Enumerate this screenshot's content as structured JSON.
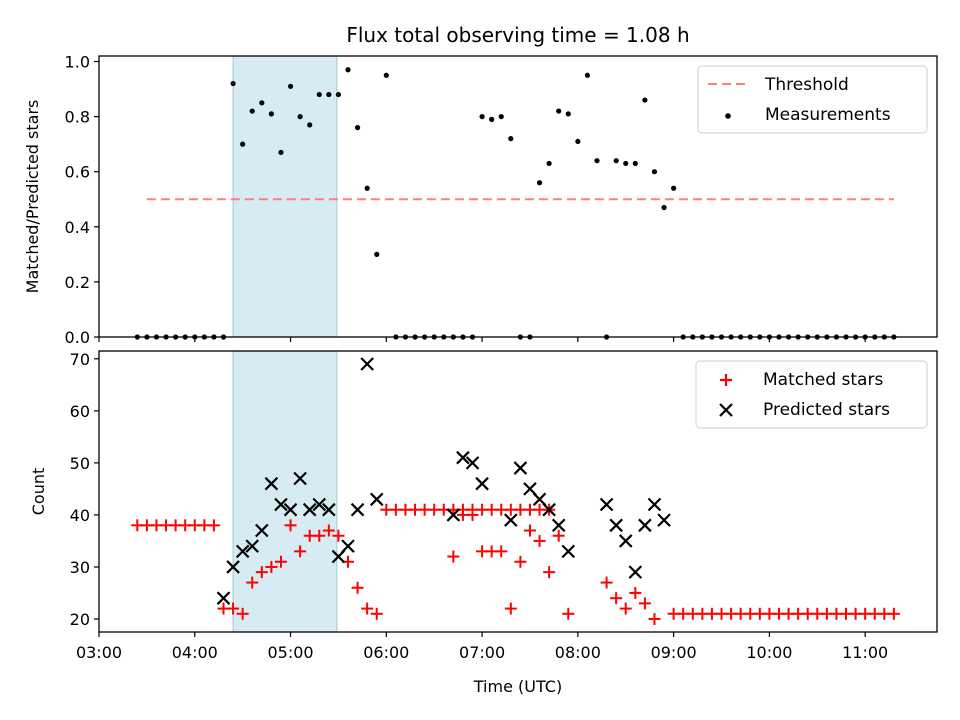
{
  "chart_data": [
    {
      "type": "scatter",
      "title": "Flux total observing time = 1.08 h",
      "xlabel": "",
      "ylabel": "Matched/Predicted stars",
      "xlim": [
        "03:00",
        "11:45"
      ],
      "ylim": [
        0,
        1.02
      ],
      "yticks": [
        "0.0",
        "0.2",
        "0.4",
        "0.6",
        "0.8",
        "1.0"
      ],
      "grid": false,
      "legend_position": "top-right",
      "highlight_span": [
        "04:24",
        "05:29"
      ],
      "series": [
        {
          "name": "Threshold",
          "kind": "dashed-line",
          "color": "#ff7f7f",
          "x": [
            "03:30",
            "11:18"
          ],
          "y": [
            0.5,
            0.5
          ]
        },
        {
          "name": "Measurements",
          "kind": "points",
          "color": "#000000",
          "x": [
            "03:24",
            "03:30",
            "03:36",
            "03:42",
            "03:48",
            "03:54",
            "04:00",
            "04:06",
            "04:12",
            "04:18",
            "04:24",
            "04:30",
            "04:36",
            "04:42",
            "04:48",
            "04:54",
            "05:00",
            "05:06",
            "05:12",
            "05:18",
            "05:24",
            "05:30",
            "05:36",
            "05:42",
            "05:48",
            "05:54",
            "06:00",
            "06:06",
            "06:12",
            "06:18",
            "06:24",
            "06:30",
            "06:36",
            "06:42",
            "06:48",
            "06:54",
            "07:00",
            "07:06",
            "07:12",
            "07:18",
            "07:24",
            "07:30",
            "07:36",
            "07:42",
            "07:48",
            "07:54",
            "08:00",
            "08:06",
            "08:12",
            "08:18",
            "08:24",
            "08:30",
            "08:36",
            "08:42",
            "08:48",
            "08:54",
            "09:00",
            "09:06",
            "09:12",
            "09:18",
            "09:24",
            "09:30",
            "09:36",
            "09:42",
            "09:48",
            "09:54",
            "10:00",
            "10:06",
            "10:12",
            "10:18",
            "10:24",
            "10:30",
            "10:36",
            "10:42",
            "10:48",
            "10:54",
            "11:00",
            "11:06",
            "11:12",
            "11:18"
          ],
          "y": [
            0,
            0,
            0,
            0,
            0,
            0,
            0,
            0,
            0,
            0,
            0.92,
            0.7,
            0.82,
            0.85,
            0.81,
            0.67,
            0.91,
            0.8,
            0.77,
            0.88,
            0.88,
            0.88,
            0.97,
            0.76,
            0.54,
            0.3,
            0.95,
            0,
            0,
            0,
            0,
            0,
            0,
            0,
            0,
            0,
            0.8,
            0.79,
            0.8,
            0.72,
            0,
            0,
            0.56,
            0.63,
            0.82,
            0.81,
            0.71,
            0.95,
            0.64,
            0,
            0.64,
            0.63,
            0.63,
            0.86,
            0.6,
            0.47,
            0.54,
            0,
            0,
            0,
            0,
            0,
            0,
            0,
            0,
            0,
            0,
            0,
            0,
            0,
            0,
            0,
            0,
            0,
            0,
            0,
            0,
            0,
            0,
            0
          ]
        }
      ]
    },
    {
      "type": "scatter",
      "title": "",
      "xlabel": "Time (UTC)",
      "ylabel": "Count",
      "xlim": [
        "03:00",
        "11:45"
      ],
      "ylim": [
        17.5,
        71.5
      ],
      "yticks": [
        "20",
        "30",
        "40",
        "50",
        "60",
        "70"
      ],
      "xticks": [
        "03:00",
        "04:00",
        "05:00",
        "06:00",
        "07:00",
        "08:00",
        "09:00",
        "10:00",
        "11:00"
      ],
      "grid": false,
      "legend_position": "top-right",
      "highlight_span": [
        "04:24",
        "05:29"
      ],
      "series": [
        {
          "name": "Matched stars",
          "kind": "plus",
          "color": "#ff0000",
          "points": [
            [
              "03:24",
              38
            ],
            [
              "03:30",
              38
            ],
            [
              "03:36",
              38
            ],
            [
              "03:42",
              38
            ],
            [
              "03:48",
              38
            ],
            [
              "03:54",
              38
            ],
            [
              "04:00",
              38
            ],
            [
              "04:06",
              38
            ],
            [
              "04:12",
              38
            ],
            [
              "04:18",
              22
            ],
            [
              "04:24",
              22
            ],
            [
              "04:30",
              21
            ],
            [
              "04:36",
              27
            ],
            [
              "04:42",
              29
            ],
            [
              "04:48",
              30
            ],
            [
              "04:54",
              31
            ],
            [
              "05:00",
              38
            ],
            [
              "05:06",
              33
            ],
            [
              "05:12",
              36
            ],
            [
              "05:18",
              36
            ],
            [
              "05:24",
              37
            ],
            [
              "05:30",
              36
            ],
            [
              "05:36",
              31
            ],
            [
              "05:42",
              26
            ],
            [
              "05:48",
              22
            ],
            [
              "05:54",
              21
            ],
            [
              "06:00",
              41
            ],
            [
              "06:06",
              41
            ],
            [
              "06:12",
              41
            ],
            [
              "06:18",
              41
            ],
            [
              "06:24",
              41
            ],
            [
              "06:30",
              41
            ],
            [
              "06:36",
              41
            ],
            [
              "06:42",
              41
            ],
            [
              "06:48",
              41
            ],
            [
              "06:54",
              41
            ],
            [
              "07:00",
              41
            ],
            [
              "07:06",
              41
            ],
            [
              "07:12",
              41
            ],
            [
              "07:18",
              41
            ],
            [
              "07:24",
              41
            ],
            [
              "07:30",
              41
            ],
            [
              "07:36",
              41
            ],
            [
              "07:42",
              41
            ],
            [
              "06:42",
              32
            ],
            [
              "06:48",
              40
            ],
            [
              "06:54",
              40
            ],
            [
              "07:00",
              33
            ],
            [
              "07:06",
              33
            ],
            [
              "07:12",
              33
            ],
            [
              "07:18",
              22
            ],
            [
              "07:24",
              31
            ],
            [
              "07:30",
              37
            ],
            [
              "07:36",
              35
            ],
            [
              "07:42",
              29
            ],
            [
              "07:48",
              36
            ],
            [
              "07:54",
              21
            ],
            [
              "08:18",
              27
            ],
            [
              "08:24",
              24
            ],
            [
              "08:30",
              22
            ],
            [
              "08:36",
              25
            ],
            [
              "08:42",
              23
            ],
            [
              "08:48",
              20
            ],
            [
              "09:00",
              21
            ],
            [
              "09:06",
              21
            ],
            [
              "09:12",
              21
            ],
            [
              "09:18",
              21
            ],
            [
              "09:24",
              21
            ],
            [
              "09:30",
              21
            ],
            [
              "09:36",
              21
            ],
            [
              "09:42",
              21
            ],
            [
              "09:48",
              21
            ],
            [
              "09:54",
              21
            ],
            [
              "10:00",
              21
            ],
            [
              "10:06",
              21
            ],
            [
              "10:12",
              21
            ],
            [
              "10:18",
              21
            ],
            [
              "10:24",
              21
            ],
            [
              "10:30",
              21
            ],
            [
              "10:36",
              21
            ],
            [
              "10:42",
              21
            ],
            [
              "10:48",
              21
            ],
            [
              "10:54",
              21
            ],
            [
              "11:00",
              21
            ],
            [
              "11:06",
              21
            ],
            [
              "11:12",
              21
            ],
            [
              "11:18",
              21
            ]
          ]
        },
        {
          "name": "Predicted stars",
          "kind": "x",
          "color": "#000000",
          "points": [
            [
              "04:18",
              24
            ],
            [
              "04:24",
              30
            ],
            [
              "04:30",
              33
            ],
            [
              "04:36",
              34
            ],
            [
              "04:42",
              37
            ],
            [
              "04:48",
              46
            ],
            [
              "04:54",
              42
            ],
            [
              "05:00",
              41
            ],
            [
              "05:06",
              47
            ],
            [
              "05:12",
              41
            ],
            [
              "05:18",
              42
            ],
            [
              "05:24",
              41
            ],
            [
              "05:30",
              32
            ],
            [
              "05:36",
              34
            ],
            [
              "05:42",
              41
            ],
            [
              "05:48",
              69
            ],
            [
              "05:54",
              43
            ],
            [
              "06:42",
              40
            ],
            [
              "06:48",
              51
            ],
            [
              "06:54",
              50
            ],
            [
              "07:00",
              46
            ],
            [
              "07:18",
              39
            ],
            [
              "07:24",
              49
            ],
            [
              "07:30",
              45
            ],
            [
              "07:36",
              43
            ],
            [
              "07:42",
              41
            ],
            [
              "07:48",
              38
            ],
            [
              "07:54",
              33
            ],
            [
              "08:18",
              42
            ],
            [
              "08:24",
              38
            ],
            [
              "08:30",
              35
            ],
            [
              "08:36",
              29
            ],
            [
              "08:42",
              38
            ],
            [
              "08:48",
              42
            ],
            [
              "08:54",
              39
            ]
          ]
        }
      ]
    }
  ]
}
